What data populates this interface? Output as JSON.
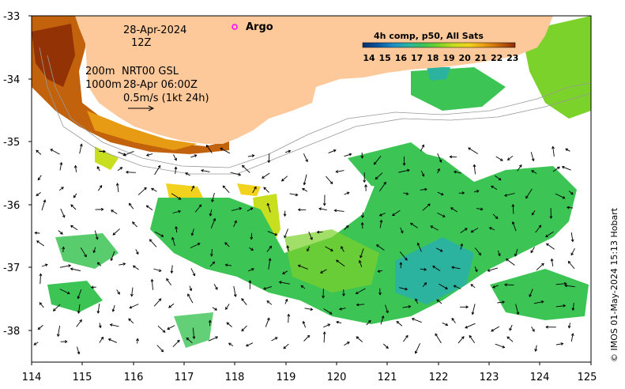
{
  "map": {
    "date": "28-Apr-2024",
    "hour": "12Z",
    "isobath_shallow": "200m",
    "isobath_deep": "1000m",
    "current_source": "NRT00 GSL",
    "current_time": "28-Apr 06:00Z",
    "scale_label": "0.5m/s (1kt 24h)",
    "argo_label": "Argo",
    "credit": "© IMOS 01-May-2024 15:13 Hobart",
    "land_color": "#fdc99a",
    "argo_color": "#ff00ff"
  },
  "colorbar": {
    "title": "4h comp, p50, All Sats",
    "labels": [
      "14",
      "15",
      "16",
      "17",
      "18",
      "19",
      "20",
      "21",
      "22",
      "23"
    ],
    "colors": [
      "#08306b",
      "#0b559f",
      "#1f8fc4",
      "#2bb3a0",
      "#3cc455",
      "#7bd22a",
      "#c7df1e",
      "#f2d21d",
      "#e79a13",
      "#c2620c",
      "#8b2c05"
    ]
  },
  "axes": {
    "x_ticks": [
      "114",
      "115",
      "116",
      "117",
      "118",
      "119",
      "120",
      "121",
      "122",
      "123",
      "124",
      "125"
    ],
    "y_ticks": [
      "-33",
      "-34",
      "-35",
      "-36",
      "-37",
      "-38"
    ],
    "x_range": [
      114,
      125
    ],
    "y_range": [
      -38.5,
      -33
    ]
  }
}
